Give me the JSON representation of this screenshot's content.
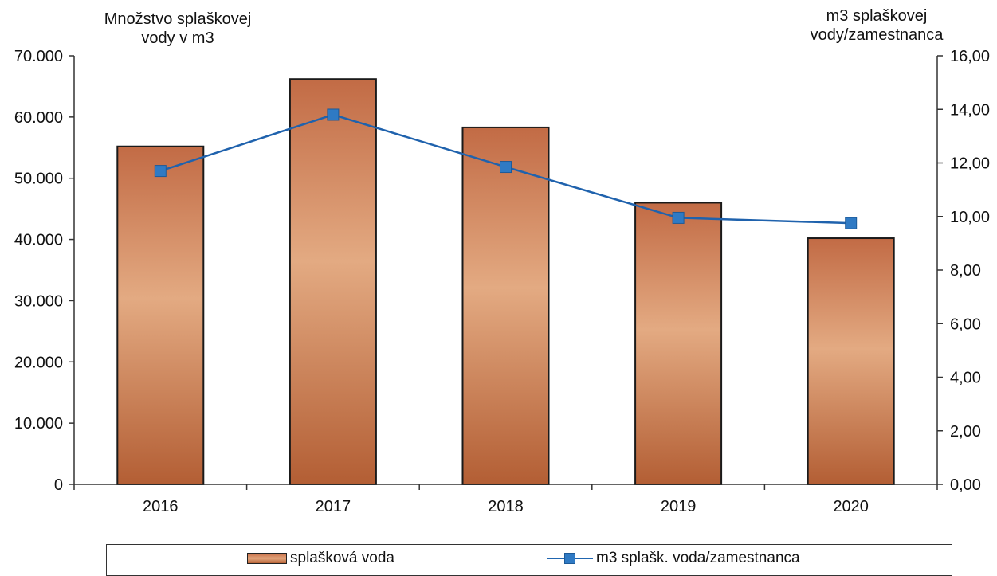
{
  "chart_data": {
    "type": "bar",
    "categories": [
      "2016",
      "2017",
      "2018",
      "2019",
      "2020"
    ],
    "series": [
      {
        "name": "splašková voda",
        "type": "bar",
        "axis": "left",
        "values": [
          55200,
          66200,
          58300,
          46000,
          40200
        ],
        "color": "#c46a40"
      },
      {
        "name": "m3 splašk. voda/zamestnanca",
        "type": "line",
        "axis": "right",
        "values": [
          11.7,
          13.8,
          11.85,
          9.95,
          9.75
        ],
        "color": "#1f62ad"
      }
    ],
    "ylabel": "Množstvo splaškovej vody v m3",
    "y2label": "m3 splaškovej vody/zamestnanca",
    "ylim": [
      0,
      70000
    ],
    "y2lim": [
      0,
      16
    ],
    "yticks": [
      "0",
      "10.000",
      "20.000",
      "30.000",
      "40.000",
      "50.000",
      "60.000",
      "70.000"
    ],
    "y2ticks": [
      "0,00",
      "2,00",
      "4,00",
      "6,00",
      "8,00",
      "10,00",
      "12,00",
      "14,00",
      "16,00"
    ],
    "grid": false,
    "legend": "bottom"
  },
  "axes": {
    "left_title_line1": "Množstvo splaškovej",
    "left_title_line2": "vody v m3",
    "right_title_line1": "m3 splaškovej",
    "right_title_line2": "vody/zamestnanca"
  },
  "legend": {
    "bar_label": "splašková voda",
    "line_label": "m3 splašk. voda/zamestnanca"
  }
}
